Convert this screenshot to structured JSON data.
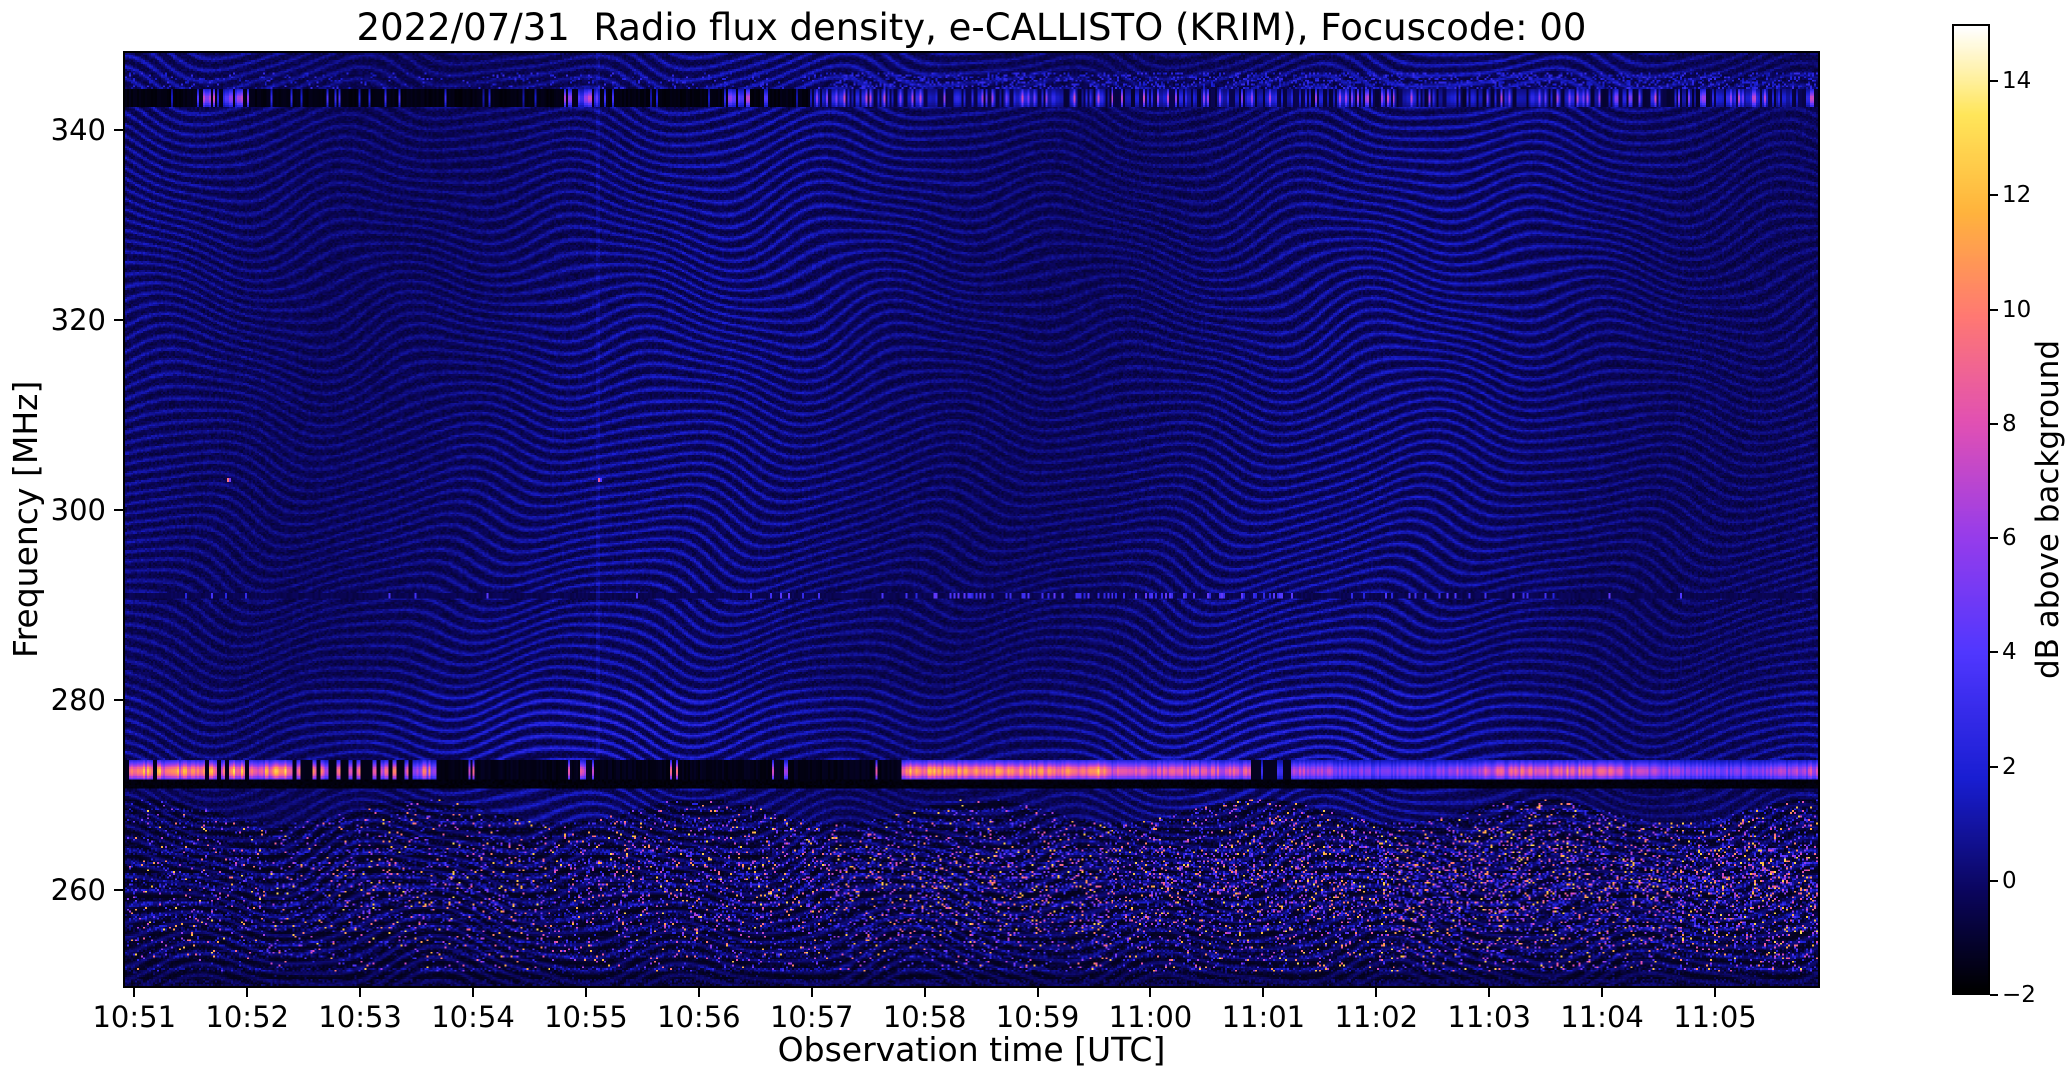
{
  "figure": {
    "background": "#ffffff"
  },
  "chart_data": {
    "type": "heatmap",
    "title": "2022/07/31  Radio flux density, e-CALLISTO (KRIM), Focuscode: 00",
    "xlabel": "Observation time [UTC]",
    "ylabel": "Frequency [MHz]",
    "colorbar_label": "dB above background",
    "x_ticks": [
      "10:51",
      "10:52",
      "10:53",
      "10:54",
      "10:55",
      "10:56",
      "10:57",
      "10:58",
      "10:59",
      "11:00",
      "11:01",
      "11:02",
      "11:03",
      "11:04",
      "11:05"
    ],
    "x_axis": {
      "span_minutes": 15.03,
      "first_tick_offset_minutes": 0.1
    },
    "y_ticks": [
      "340",
      "320",
      "300",
      "280",
      "260"
    ],
    "y_tick_values": [
      340,
      320,
      300,
      280,
      260
    ],
    "y_range_mhz": [
      249.7,
      348.3
    ],
    "colorbar_ticks": [
      "14",
      "12",
      "10",
      "8",
      "6",
      "4",
      "2",
      "0",
      "−2"
    ],
    "colorbar_tick_values": [
      14,
      12,
      10,
      8,
      6,
      4,
      2,
      0,
      -2
    ],
    "colorbar_range_db": [
      -2,
      15
    ],
    "grid": false,
    "legend": "colorbar-right",
    "colormap_stops": [
      [
        0.0,
        0,
        0,
        0
      ],
      [
        0.1,
        10,
        5,
        90
      ],
      [
        0.22,
        25,
        30,
        210
      ],
      [
        0.35,
        80,
        55,
        255
      ],
      [
        0.47,
        150,
        60,
        235
      ],
      [
        0.59,
        225,
        80,
        180
      ],
      [
        0.7,
        255,
        120,
        115
      ],
      [
        0.81,
        255,
        180,
        60
      ],
      [
        0.91,
        255,
        230,
        90
      ],
      [
        1.0,
        255,
        255,
        255
      ]
    ],
    "features": {
      "fringes": "wavy interference arc pattern across the whole band, dark navy background with blue fringe crests",
      "rfi_bands": [
        {
          "freq_range_mhz": [
            342.6,
            344.5
          ],
          "center_mhz": 343.5,
          "desc": "dark band with intermittent blue/magenta bursts near 10:51.7, 10:55, 10:56.3; continuous speckled blue line with magenta dashes after ~10:57"
        },
        {
          "freq_range_mhz": [
            290.7,
            291.3
          ],
          "desc": "faint dark line with blue dots, densest 10:58-11:01"
        },
        {
          "freq_range_mhz": [
            271.5,
            273.6
          ],
          "center_mhz": 272.4,
          "desc": "strong variable band: bright pink/white 10:51-10:53.7, mostly black 10:53.7-10:57.9 with blip near 10:55, bright orange/pink 10:57.9 to end with short gap near 11:01"
        },
        {
          "freq_range_mhz": [
            270.55,
            271.5
          ],
          "desc": "persistent black absorption-like line"
        }
      ],
      "noise_floor": {
        "below_mhz": 268.2,
        "desc": "speckled impulsive RFI region down to bottom edge, colourful specks denser toward the right half"
      },
      "point_bursts": [
        {
          "time_tick_offset_min": 0.8,
          "freq_mhz": 303.3
        },
        {
          "time_tick_offset_min": 4.1,
          "freq_mhz": 303.3
        }
      ],
      "faint_vertical_line_at_tick_offset_min": 4.1
    }
  }
}
